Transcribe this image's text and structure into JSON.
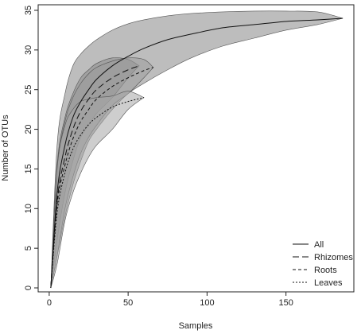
{
  "chart_data": {
    "type": "line",
    "xlabel": "Samples",
    "ylabel": "Number of OTUs",
    "xlim": [
      -7,
      193
    ],
    "ylim": [
      -0.5,
      35.7
    ],
    "x_ticks": [
      0,
      50,
      100,
      150
    ],
    "y_ticks": [
      0,
      5,
      10,
      15,
      20,
      25,
      30,
      35
    ],
    "grid": false,
    "legend_position": "bottom-right",
    "series": [
      {
        "name": "All",
        "line_style": "solid",
        "band_color": "#bdbdbd",
        "x": [
          1,
          5,
          10,
          15,
          20,
          25,
          30,
          40,
          50,
          60,
          75,
          90,
          110,
          130,
          150,
          170,
          186
        ],
        "y": [
          0,
          12,
          18,
          21.5,
          23.5,
          25,
          26.3,
          28,
          29.2,
          30.2,
          31.3,
          32,
          32.8,
          33.2,
          33.6,
          33.8,
          34
        ],
        "lower": [
          0,
          4,
          9,
          13,
          16,
          18.5,
          20,
          22.5,
          24.5,
          25.8,
          27.5,
          29,
          30.5,
          31.5,
          32.5,
          33.2,
          34
        ],
        "upper": [
          0,
          18,
          24.5,
          28,
          29.5,
          30.5,
          31.3,
          32.5,
          33.3,
          33.8,
          34.3,
          34.6,
          34.8,
          34.9,
          34.9,
          34.8,
          34
        ]
      },
      {
        "name": "Rhizomes",
        "line_style": "long-dash",
        "band_color": "#8a8a8a",
        "x": [
          1,
          5,
          10,
          15,
          20,
          25,
          30,
          40,
          50,
          57
        ],
        "y": [
          0,
          11,
          16.5,
          20,
          22.3,
          23.8,
          25,
          26.5,
          27.5,
          28
        ],
        "lower": [
          0,
          6,
          12,
          16,
          19,
          20.5,
          22,
          24,
          26.5,
          28
        ],
        "upper": [
          0,
          15.5,
          21.5,
          24.5,
          26.5,
          27.5,
          28.3,
          29,
          28.8,
          28
        ]
      },
      {
        "name": "Roots",
        "line_style": "short-dash",
        "band_color": "#9c9c9c",
        "x": [
          1,
          5,
          10,
          15,
          20,
          25,
          30,
          40,
          50,
          60,
          66
        ],
        "y": [
          0,
          10.5,
          15.5,
          18.8,
          21,
          22.5,
          23.8,
          25.4,
          26.5,
          27.4,
          27.8
        ],
        "lower": [
          0,
          4,
          10,
          14,
          17,
          19,
          20.5,
          23,
          24.5,
          26.5,
          27.8
        ],
        "upper": [
          0,
          15,
          21,
          24,
          25.8,
          27,
          27.8,
          28.6,
          29,
          28.8,
          27.8
        ]
      },
      {
        "name": "Leaves",
        "line_style": "dotted",
        "band_color": "#a6a6a6",
        "x": [
          1,
          5,
          10,
          15,
          20,
          25,
          30,
          40,
          50,
          60
        ],
        "y": [
          0,
          9.5,
          14.5,
          17.5,
          19.3,
          20.6,
          21.5,
          22.8,
          23.5,
          24
        ],
        "lower": [
          0,
          3,
          8.5,
          12,
          14.5,
          16.5,
          18,
          20,
          22.5,
          24
        ],
        "upper": [
          0,
          15,
          20.5,
          22.5,
          23.5,
          23.8,
          24,
          24.2,
          24.8,
          24
        ]
      }
    ]
  }
}
